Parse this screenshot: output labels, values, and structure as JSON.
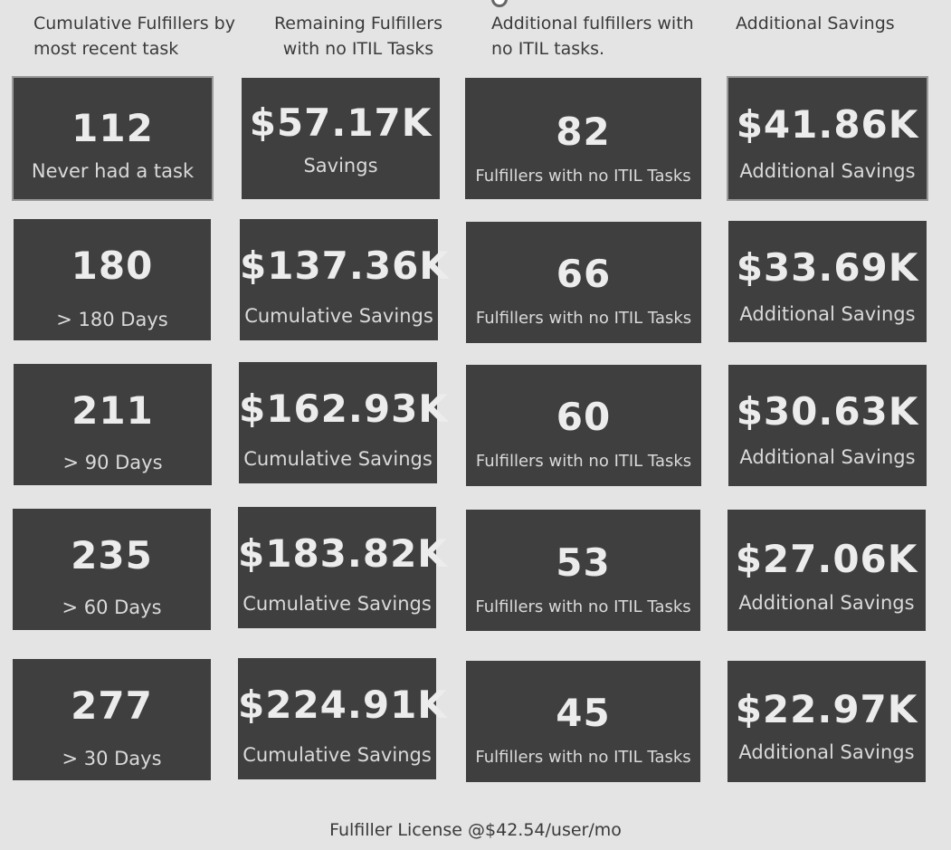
{
  "headers": {
    "col1": "Cumulative Fulfillers by most recent task",
    "col2": "Remaining Fulfillers with no ITIL Tasks",
    "col3": "Additional fulfillers with no ITIL tasks.",
    "col4": "Additional Savings"
  },
  "rows": [
    {
      "c1": {
        "value": "112",
        "label": "Never had a task"
      },
      "c2": {
        "value": "$57.17K",
        "label": "Savings"
      },
      "c3": {
        "value": "82",
        "label": "Fulfillers with no ITIL Tasks"
      },
      "c4": {
        "value": "$41.86K",
        "label": "Additional Savings"
      }
    },
    {
      "c1": {
        "value": "180",
        "label": "> 180 Days"
      },
      "c2": {
        "value": "$137.36K",
        "label": "Cumulative Savings"
      },
      "c3": {
        "value": "66",
        "label": "Fulfillers with no ITIL Tasks"
      },
      "c4": {
        "value": "$33.69K",
        "label": "Additional Savings"
      }
    },
    {
      "c1": {
        "value": "211",
        "label": "> 90 Days"
      },
      "c2": {
        "value": "$162.93K",
        "label": "Cumulative Savings"
      },
      "c3": {
        "value": "60",
        "label": "Fulfillers with no ITIL Tasks"
      },
      "c4": {
        "value": "$30.63K",
        "label": "Additional Savings"
      }
    },
    {
      "c1": {
        "value": "235",
        "label": "> 60 Days"
      },
      "c2": {
        "value": "$183.82K",
        "label": "Cumulative Savings"
      },
      "c3": {
        "value": "53",
        "label": "Fulfillers with no ITIL Tasks"
      },
      "c4": {
        "value": "$27.06K",
        "label": "Additional Savings"
      }
    },
    {
      "c1": {
        "value": "277",
        "label": "> 30 Days"
      },
      "c2": {
        "value": "$224.91K",
        "label": "Cumulative Savings"
      },
      "c3": {
        "value": "45",
        "label": "Fulfillers with no ITIL Tasks"
      },
      "c4": {
        "value": "$22.97K",
        "label": "Additional Savings"
      }
    }
  ],
  "footer": "Fulfiller License @$42.54/user/mo",
  "colors": {
    "background": "#e4e4e4",
    "card": "#3f3f3f",
    "card_text": "#ececec"
  }
}
